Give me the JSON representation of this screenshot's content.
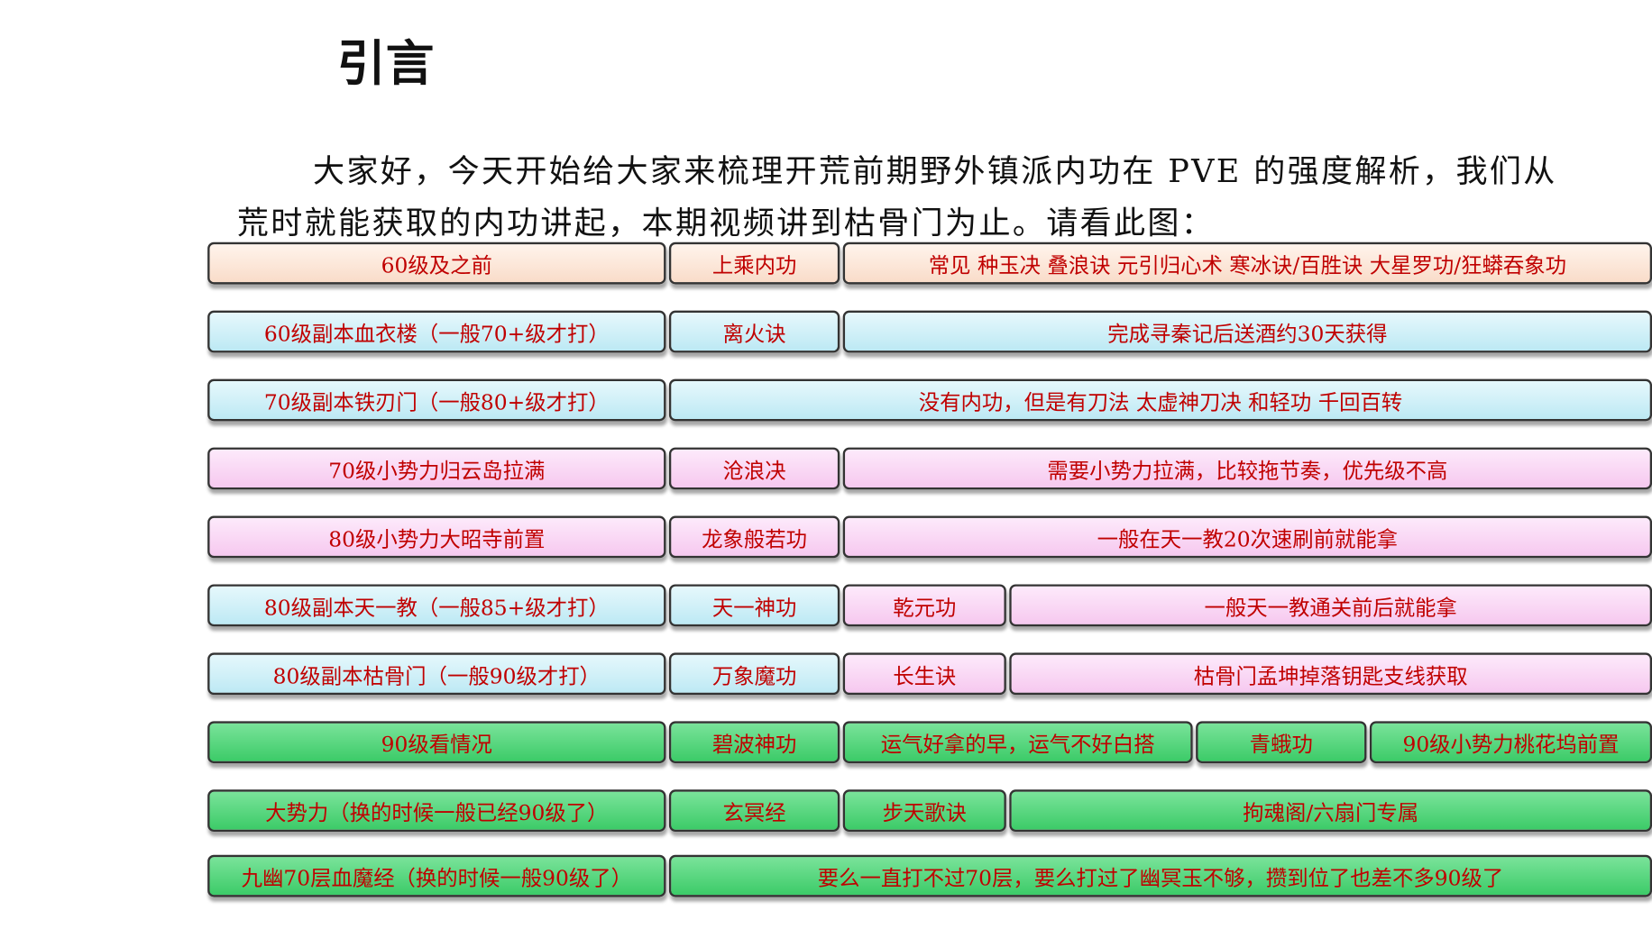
{
  "header": {
    "title": "引言"
  },
  "intro": {
    "lines": [
      "大家好，今天开始给大家来梳理开荒前期野外镇派内功在 PVE 的强度解析，我们从",
      "荒时就能获取的内功讲起，本期视频讲到枯骨门为止。请看此图："
    ]
  },
  "table": {
    "rows": [
      [
        "60级及之前",
        "上乘内功",
        "常见  种玉决  叠浪诀  元引归心术  寒冰诀/百胜诀  大星罗功/狂蟒吞象功"
      ],
      [
        "60级副本血衣楼（一般70+级才打）",
        "离火诀",
        "完成寻秦记后送酒约30天获得"
      ],
      [
        "70级副本铁刃门（一般80+级才打）",
        "没有内功，但是有刀法  太虚神刀决  和轻功  千回百转"
      ],
      [
        "70级小势力归云岛拉满",
        "沧浪决",
        "需要小势力拉满，比较拖节奏，优先级不高"
      ],
      [
        "80级小势力大昭寺前置",
        "龙象般若功",
        "一般在天一教20次速刷前就能拿"
      ],
      [
        "80级副本天一教（一般85+级才打）",
        "天一神功",
        "乾元功",
        "一般天一教通关前后就能拿"
      ],
      [
        "80级副本枯骨门（一般90级才打）",
        "万象魔功",
        "长生诀",
        "枯骨门孟坤掉落钥匙支线获取"
      ],
      [
        "90级看情况",
        "碧波神功",
        "运气好拿的早，运气不好白搭",
        "青蛾功",
        "90级小势力桃花坞前置"
      ],
      [
        "大势力（换的时候一般已经90级了）",
        "玄冥经",
        "步天歌诀",
        "拘魂阁/六扇门专属"
      ],
      [
        "九幽70层血魔经（换的时候一般90级了）",
        "要么一直打不过70层，要么打过了幽冥玉不够，攒到位了也差不多90级了"
      ]
    ]
  }
}
